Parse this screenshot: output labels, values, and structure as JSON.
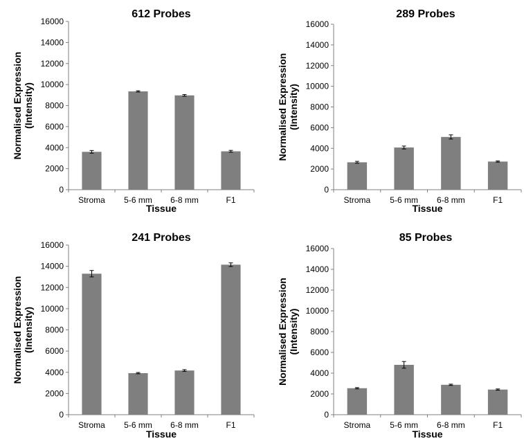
{
  "chart_data": [
    {
      "type": "bar",
      "title": "612 Probes",
      "xlabel": "Tissue",
      "ylabel_line1": "Normalised Expression",
      "ylabel_line2": "(Intensity)",
      "categories": [
        "Stroma",
        "5-6 mm",
        "6-8 mm",
        "F1"
      ],
      "values": [
        3600,
        9350,
        8970,
        3650
      ],
      "errors": [
        130,
        60,
        80,
        90
      ],
      "ylim": [
        0,
        16000
      ],
      "yticks": [
        0,
        2000,
        4000,
        6000,
        8000,
        10000,
        12000,
        14000,
        16000
      ],
      "bar_color": "#7f7f7f"
    },
    {
      "type": "bar",
      "title": "289 Probes",
      "xlabel": "Tissue",
      "ylabel_line1": "Normalised Expression",
      "ylabel_line2": "(Intensity)",
      "categories": [
        "Stroma",
        "5-6 mm",
        "6-8 mm",
        "F1"
      ],
      "values": [
        2650,
        4080,
        5100,
        2720
      ],
      "errors": [
        90,
        140,
        200,
        60
      ],
      "ylim": [
        0,
        16000
      ],
      "yticks": [
        0,
        2000,
        4000,
        6000,
        8000,
        10000,
        12000,
        14000,
        16000
      ],
      "bar_color": "#7f7f7f"
    },
    {
      "type": "bar",
      "title": "241 Probes",
      "xlabel": "Tissue",
      "ylabel_line1": "Normalised Expression",
      "ylabel_line2": "(Intensity)",
      "categories": [
        "Stroma",
        "5-6 mm",
        "6-8 mm",
        "F1"
      ],
      "values": [
        13300,
        3920,
        4170,
        14150
      ],
      "errors": [
        300,
        60,
        80,
        170
      ],
      "ylim": [
        0,
        16000
      ],
      "yticks": [
        0,
        2000,
        4000,
        6000,
        8000,
        10000,
        12000,
        14000,
        16000
      ],
      "bar_color": "#7f7f7f"
    },
    {
      "type": "bar",
      "title": "85 Probes",
      "xlabel": "Tissue",
      "ylabel_line1": "Normalised Expression",
      "ylabel_line2": "(Intensity)",
      "categories": [
        "Stroma",
        "5-6 mm",
        "6-8 mm",
        "F1"
      ],
      "values": [
        2550,
        4800,
        2880,
        2420
      ],
      "errors": [
        60,
        320,
        60,
        60
      ],
      "ylim": [
        0,
        16000
      ],
      "yticks": [
        0,
        2000,
        4000,
        6000,
        8000,
        10000,
        12000,
        14000,
        16000
      ],
      "bar_color": "#7f7f7f"
    }
  ]
}
